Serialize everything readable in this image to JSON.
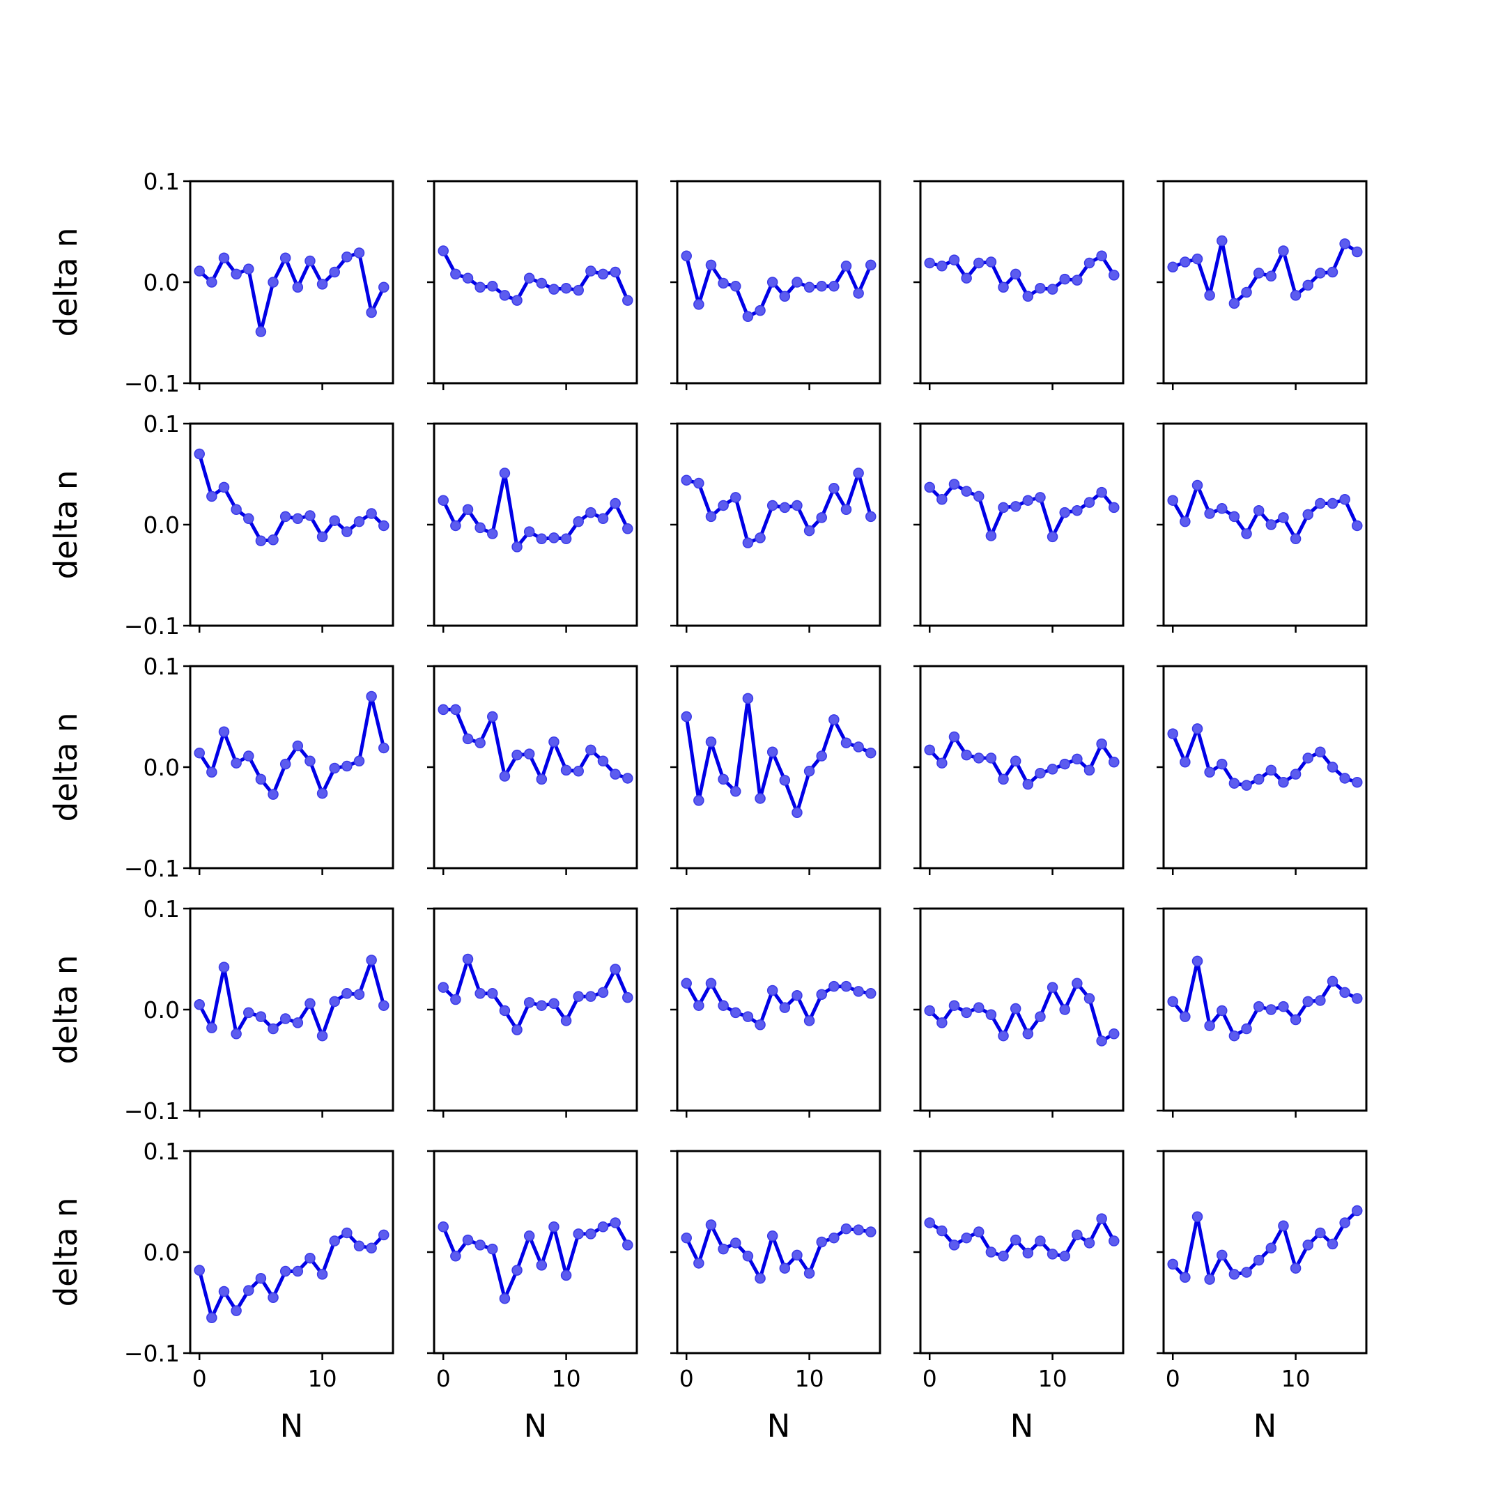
{
  "chart_data": [
    {
      "type": "line",
      "xlabel": "",
      "ylabel": "delta n",
      "ylim": [
        -0.1,
        0.1
      ],
      "yticks": [
        "0.1",
        "0.0",
        "−0.1"
      ],
      "xticks": [],
      "x": [
        0,
        1,
        2,
        3,
        4,
        5,
        6,
        7,
        8,
        9,
        10,
        11,
        12,
        13,
        14,
        15
      ],
      "values": [
        0.011,
        0.0,
        0.024,
        0.008,
        0.013,
        -0.049,
        0.0,
        0.024,
        -0.005,
        0.021,
        -0.002,
        0.01,
        0.025,
        0.029,
        -0.03,
        -0.005
      ]
    },
    {
      "type": "line",
      "xlabel": "",
      "ylabel": "",
      "ylim": [
        -0.1,
        0.1
      ],
      "yticks": [],
      "xticks": [],
      "x": [
        0,
        1,
        2,
        3,
        4,
        5,
        6,
        7,
        8,
        9,
        10,
        11,
        12,
        13,
        14,
        15
      ],
      "values": [
        0.031,
        0.008,
        0.004,
        -0.005,
        -0.004,
        -0.013,
        -0.018,
        0.004,
        -0.001,
        -0.007,
        -0.006,
        -0.008,
        0.011,
        0.008,
        0.01,
        -0.018
      ]
    },
    {
      "type": "line",
      "xlabel": "",
      "ylabel": "",
      "ylim": [
        -0.1,
        0.1
      ],
      "yticks": [],
      "xticks": [],
      "x": [
        0,
        1,
        2,
        3,
        4,
        5,
        6,
        7,
        8,
        9,
        10,
        11,
        12,
        13,
        14,
        15
      ],
      "values": [
        0.026,
        -0.022,
        0.017,
        -0.001,
        -0.004,
        -0.034,
        -0.028,
        0.0,
        -0.014,
        0.0,
        -0.005,
        -0.004,
        -0.004,
        0.016,
        -0.011,
        0.017
      ]
    },
    {
      "type": "line",
      "xlabel": "",
      "ylabel": "",
      "ylim": [
        -0.1,
        0.1
      ],
      "yticks": [],
      "xticks": [],
      "x": [
        0,
        1,
        2,
        3,
        4,
        5,
        6,
        7,
        8,
        9,
        10,
        11,
        12,
        13,
        14,
        15
      ],
      "values": [
        0.019,
        0.016,
        0.022,
        0.004,
        0.019,
        0.02,
        -0.005,
        0.008,
        -0.014,
        -0.006,
        -0.007,
        0.003,
        0.002,
        0.019,
        0.026,
        0.007
      ]
    },
    {
      "type": "line",
      "xlabel": "",
      "ylabel": "",
      "ylim": [
        -0.1,
        0.1
      ],
      "yticks": [],
      "xticks": [],
      "x": [
        0,
        1,
        2,
        3,
        4,
        5,
        6,
        7,
        8,
        9,
        10,
        11,
        12,
        13,
        14,
        15
      ],
      "values": [
        0.015,
        0.02,
        0.023,
        -0.013,
        0.041,
        -0.021,
        -0.01,
        0.009,
        0.006,
        0.031,
        -0.013,
        -0.003,
        0.009,
        0.01,
        0.038,
        0.03
      ]
    },
    {
      "type": "line",
      "xlabel": "",
      "ylabel": "delta n",
      "ylim": [
        -0.1,
        0.1
      ],
      "yticks": [
        "0.1",
        "0.0",
        "−0.1"
      ],
      "xticks": [],
      "x": [
        0,
        1,
        2,
        3,
        4,
        5,
        6,
        7,
        8,
        9,
        10,
        11,
        12,
        13,
        14,
        15
      ],
      "values": [
        0.07,
        0.028,
        0.037,
        0.015,
        0.006,
        -0.016,
        -0.015,
        0.008,
        0.006,
        0.009,
        -0.012,
        0.004,
        -0.007,
        0.003,
        0.011,
        -0.001
      ]
    },
    {
      "type": "line",
      "xlabel": "",
      "ylabel": "",
      "ylim": [
        -0.1,
        0.1
      ],
      "yticks": [],
      "xticks": [],
      "x": [
        0,
        1,
        2,
        3,
        4,
        5,
        6,
        7,
        8,
        9,
        10,
        11,
        12,
        13,
        14,
        15
      ],
      "values": [
        0.024,
        -0.001,
        0.015,
        -0.003,
        -0.009,
        0.051,
        -0.022,
        -0.007,
        -0.014,
        -0.013,
        -0.014,
        0.003,
        0.012,
        0.006,
        0.021,
        -0.004
      ]
    },
    {
      "type": "line",
      "xlabel": "",
      "ylabel": "",
      "ylim": [
        -0.1,
        0.1
      ],
      "yticks": [],
      "xticks": [],
      "x": [
        0,
        1,
        2,
        3,
        4,
        5,
        6,
        7,
        8,
        9,
        10,
        11,
        12,
        13,
        14,
        15
      ],
      "values": [
        0.044,
        0.041,
        0.008,
        0.019,
        0.027,
        -0.018,
        -0.013,
        0.019,
        0.017,
        0.019,
        -0.006,
        0.007,
        0.036,
        0.015,
        0.051,
        0.008
      ]
    },
    {
      "type": "line",
      "xlabel": "",
      "ylabel": "",
      "ylim": [
        -0.1,
        0.1
      ],
      "yticks": [],
      "xticks": [],
      "x": [
        0,
        1,
        2,
        3,
        4,
        5,
        6,
        7,
        8,
        9,
        10,
        11,
        12,
        13,
        14,
        15
      ],
      "values": [
        0.037,
        0.025,
        0.04,
        0.033,
        0.028,
        -0.011,
        0.017,
        0.018,
        0.024,
        0.027,
        -0.012,
        0.012,
        0.014,
        0.022,
        0.032,
        0.017
      ]
    },
    {
      "type": "line",
      "xlabel": "",
      "ylabel": "",
      "ylim": [
        -0.1,
        0.1
      ],
      "yticks": [],
      "xticks": [],
      "x": [
        0,
        1,
        2,
        3,
        4,
        5,
        6,
        7,
        8,
        9,
        10,
        11,
        12,
        13,
        14,
        15
      ],
      "values": [
        0.024,
        0.003,
        0.039,
        0.011,
        0.016,
        0.008,
        -0.009,
        0.014,
        0.0,
        0.007,
        -0.014,
        0.01,
        0.021,
        0.021,
        0.025,
        -0.001
      ]
    },
    {
      "type": "line",
      "xlabel": "",
      "ylabel": "delta n",
      "ylim": [
        -0.1,
        0.1
      ],
      "yticks": [
        "0.1",
        "0.0",
        "−0.1"
      ],
      "xticks": [],
      "x": [
        0,
        1,
        2,
        3,
        4,
        5,
        6,
        7,
        8,
        9,
        10,
        11,
        12,
        13,
        14,
        15
      ],
      "values": [
        0.014,
        -0.005,
        0.035,
        0.004,
        0.011,
        -0.012,
        -0.027,
        0.003,
        0.021,
        0.006,
        -0.026,
        -0.001,
        0.001,
        0.006,
        0.07,
        0.019
      ]
    },
    {
      "type": "line",
      "xlabel": "",
      "ylabel": "",
      "ylim": [
        -0.1,
        0.1
      ],
      "yticks": [],
      "xticks": [],
      "x": [
        0,
        1,
        2,
        3,
        4,
        5,
        6,
        7,
        8,
        9,
        10,
        11,
        12,
        13,
        14,
        15
      ],
      "values": [
        0.057,
        0.057,
        0.028,
        0.024,
        0.05,
        -0.009,
        0.012,
        0.013,
        -0.012,
        0.025,
        -0.003,
        -0.004,
        0.017,
        0.006,
        -0.007,
        -0.011
      ]
    },
    {
      "type": "line",
      "xlabel": "",
      "ylabel": "",
      "ylim": [
        -0.1,
        0.1
      ],
      "yticks": [],
      "xticks": [],
      "x": [
        0,
        1,
        2,
        3,
        4,
        5,
        6,
        7,
        8,
        9,
        10,
        11,
        12,
        13,
        14,
        15
      ],
      "values": [
        0.05,
        -0.033,
        0.025,
        -0.012,
        -0.024,
        0.068,
        -0.031,
        0.015,
        -0.013,
        -0.045,
        -0.004,
        0.011,
        0.047,
        0.024,
        0.02,
        0.014
      ]
    },
    {
      "type": "line",
      "xlabel": "",
      "ylabel": "",
      "ylim": [
        -0.1,
        0.1
      ],
      "yticks": [],
      "xticks": [],
      "x": [
        0,
        1,
        2,
        3,
        4,
        5,
        6,
        7,
        8,
        9,
        10,
        11,
        12,
        13,
        14,
        15
      ],
      "values": [
        0.017,
        0.004,
        0.03,
        0.012,
        0.009,
        0.009,
        -0.012,
        0.006,
        -0.017,
        -0.006,
        -0.002,
        0.003,
        0.008,
        -0.003,
        0.023,
        0.005
      ]
    },
    {
      "type": "line",
      "xlabel": "",
      "ylabel": "",
      "ylim": [
        -0.1,
        0.1
      ],
      "yticks": [],
      "xticks": [],
      "x": [
        0,
        1,
        2,
        3,
        4,
        5,
        6,
        7,
        8,
        9,
        10,
        11,
        12,
        13,
        14,
        15
      ],
      "values": [
        0.033,
        0.005,
        0.038,
        -0.005,
        0.003,
        -0.016,
        -0.018,
        -0.012,
        -0.003,
        -0.015,
        -0.007,
        0.009,
        0.015,
        0.0,
        -0.011,
        -0.015
      ]
    },
    {
      "type": "line",
      "xlabel": "",
      "ylabel": "delta n",
      "ylim": [
        -0.1,
        0.1
      ],
      "yticks": [
        "0.1",
        "0.0",
        "−0.1"
      ],
      "xticks": [],
      "x": [
        0,
        1,
        2,
        3,
        4,
        5,
        6,
        7,
        8,
        9,
        10,
        11,
        12,
        13,
        14,
        15
      ],
      "values": [
        0.005,
        -0.018,
        0.042,
        -0.024,
        -0.003,
        -0.007,
        -0.019,
        -0.009,
        -0.013,
        0.006,
        -0.026,
        0.008,
        0.016,
        0.015,
        0.049,
        0.004
      ]
    },
    {
      "type": "line",
      "xlabel": "",
      "ylabel": "",
      "ylim": [
        -0.1,
        0.1
      ],
      "yticks": [],
      "xticks": [],
      "x": [
        0,
        1,
        2,
        3,
        4,
        5,
        6,
        7,
        8,
        9,
        10,
        11,
        12,
        13,
        14,
        15
      ],
      "values": [
        0.022,
        0.01,
        0.05,
        0.016,
        0.016,
        -0.001,
        -0.02,
        0.007,
        0.004,
        0.006,
        -0.011,
        0.013,
        0.013,
        0.017,
        0.04,
        0.012
      ]
    },
    {
      "type": "line",
      "xlabel": "",
      "ylabel": "",
      "ylim": [
        -0.1,
        0.1
      ],
      "yticks": [],
      "xticks": [],
      "x": [
        0,
        1,
        2,
        3,
        4,
        5,
        6,
        7,
        8,
        9,
        10,
        11,
        12,
        13,
        14,
        15
      ],
      "values": [
        0.026,
        0.004,
        0.026,
        0.004,
        -0.003,
        -0.007,
        -0.015,
        0.019,
        0.002,
        0.014,
        -0.011,
        0.015,
        0.023,
        0.023,
        0.018,
        0.016
      ]
    },
    {
      "type": "line",
      "xlabel": "",
      "ylabel": "",
      "ylim": [
        -0.1,
        0.1
      ],
      "yticks": [],
      "xticks": [],
      "x": [
        0,
        1,
        2,
        3,
        4,
        5,
        6,
        7,
        8,
        9,
        10,
        11,
        12,
        13,
        14,
        15
      ],
      "values": [
        -0.001,
        -0.013,
        0.004,
        -0.003,
        0.002,
        -0.005,
        -0.026,
        0.001,
        -0.024,
        -0.007,
        0.022,
        0.0,
        0.026,
        0.011,
        -0.031,
        -0.024
      ]
    },
    {
      "type": "line",
      "xlabel": "",
      "ylabel": "",
      "ylim": [
        -0.1,
        0.1
      ],
      "yticks": [],
      "xticks": [],
      "x": [
        0,
        1,
        2,
        3,
        4,
        5,
        6,
        7,
        8,
        9,
        10,
        11,
        12,
        13,
        14,
        15
      ],
      "values": [
        0.008,
        -0.007,
        0.048,
        -0.016,
        -0.001,
        -0.026,
        -0.019,
        0.003,
        0.0,
        0.003,
        -0.01,
        0.008,
        0.009,
        0.028,
        0.017,
        0.011
      ]
    },
    {
      "type": "line",
      "xlabel": "N",
      "ylabel": "delta n",
      "ylim": [
        -0.1,
        0.1
      ],
      "yticks": [
        "0.1",
        "0.0",
        "−0.1"
      ],
      "xticks": [
        "0",
        "10"
      ],
      "x": [
        0,
        1,
        2,
        3,
        4,
        5,
        6,
        7,
        8,
        9,
        10,
        11,
        12,
        13,
        14,
        15
      ],
      "values": [
        -0.018,
        -0.065,
        -0.039,
        -0.058,
        -0.038,
        -0.026,
        -0.045,
        -0.019,
        -0.019,
        -0.006,
        -0.022,
        0.011,
        0.019,
        0.006,
        0.004,
        0.017
      ]
    },
    {
      "type": "line",
      "xlabel": "N",
      "ylabel": "",
      "ylim": [
        -0.1,
        0.1
      ],
      "yticks": [],
      "xticks": [
        "0",
        "10"
      ],
      "x": [
        0,
        1,
        2,
        3,
        4,
        5,
        6,
        7,
        8,
        9,
        10,
        11,
        12,
        13,
        14,
        15
      ],
      "values": [
        0.025,
        -0.004,
        0.012,
        0.007,
        0.003,
        -0.046,
        -0.018,
        0.016,
        -0.013,
        0.025,
        -0.023,
        0.018,
        0.018,
        0.025,
        0.029,
        0.007
      ]
    },
    {
      "type": "line",
      "xlabel": "N",
      "ylabel": "",
      "ylim": [
        -0.1,
        0.1
      ],
      "yticks": [],
      "xticks": [
        "0",
        "10"
      ],
      "x": [
        0,
        1,
        2,
        3,
        4,
        5,
        6,
        7,
        8,
        9,
        10,
        11,
        12,
        13,
        14,
        15
      ],
      "values": [
        0.014,
        -0.011,
        0.027,
        0.003,
        0.009,
        -0.004,
        -0.026,
        0.016,
        -0.016,
        -0.003,
        -0.021,
        0.01,
        0.014,
        0.023,
        0.022,
        0.02
      ]
    },
    {
      "type": "line",
      "xlabel": "N",
      "ylabel": "",
      "ylim": [
        -0.1,
        0.1
      ],
      "yticks": [],
      "xticks": [
        "0",
        "10"
      ],
      "x": [
        0,
        1,
        2,
        3,
        4,
        5,
        6,
        7,
        8,
        9,
        10,
        11,
        12,
        13,
        14,
        15
      ],
      "values": [
        0.029,
        0.021,
        0.007,
        0.014,
        0.02,
        0.0,
        -0.004,
        0.012,
        -0.001,
        0.011,
        -0.002,
        -0.004,
        0.017,
        0.009,
        0.033,
        0.011
      ]
    },
    {
      "type": "line",
      "xlabel": "N",
      "ylabel": "",
      "ylim": [
        -0.1,
        0.1
      ],
      "yticks": [],
      "xticks": [
        "0",
        "10"
      ],
      "x": [
        0,
        1,
        2,
        3,
        4,
        5,
        6,
        7,
        8,
        9,
        10,
        11,
        12,
        13,
        14,
        15
      ],
      "values": [
        -0.012,
        -0.025,
        0.035,
        -0.027,
        -0.003,
        -0.022,
        -0.02,
        -0.008,
        0.004,
        0.026,
        -0.016,
        0.007,
        0.019,
        0.008,
        0.029,
        0.041
      ]
    }
  ],
  "colors": {
    "line": "#0000e6",
    "marker": "#5c5cef"
  }
}
